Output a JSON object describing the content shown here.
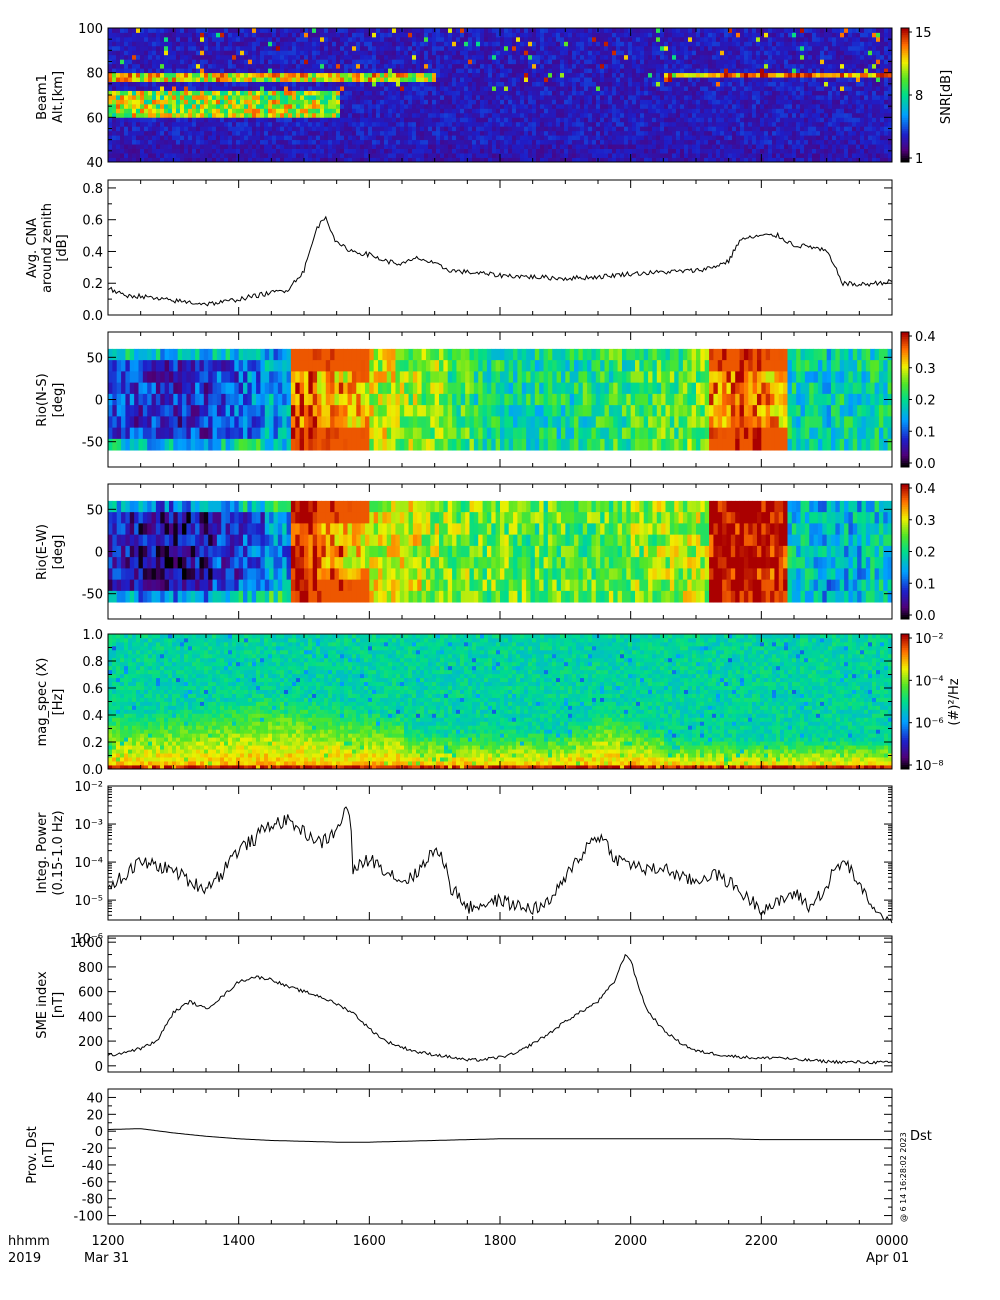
{
  "chart_data": [
    {
      "type": "heatmap",
      "ylabel": [
        "Beam1",
        "Alt.[km]"
      ],
      "ylim": [
        40,
        100
      ],
      "yticks": [
        40,
        60,
        80,
        100
      ],
      "colorbar": {
        "label": "SNR[dB]",
        "range": [
          1,
          15
        ],
        "ticks": [
          "1",
          "8",
          "15"
        ]
      },
      "features": [
        {
          "layer": "lower echo layer",
          "alt_km": [
            62,
            72
          ],
          "time_range": [
            "1200",
            "1530"
          ]
        },
        {
          "layer": "upper echo layer",
          "alt_km": [
            76,
            80
          ],
          "time_range": [
            "1200",
            "1700"
          ]
        },
        {
          "layer": "upper echo layer",
          "alt_km": [
            77,
            79
          ],
          "time_range": [
            "2030",
            "0000"
          ]
        }
      ]
    },
    {
      "type": "line",
      "ylabel": [
        "Avg. CNA",
        "around zenith",
        "[dB]"
      ],
      "ylim": [
        0.0,
        0.85
      ],
      "yticks": [
        "0.0",
        "0.2",
        "0.4",
        "0.6",
        "0.8"
      ],
      "x": [
        1200,
        1215,
        1230,
        1245,
        1300,
        1315,
        1330,
        1345,
        1400,
        1415,
        1430,
        1445,
        1500,
        1512,
        1520,
        1530,
        1545,
        1600,
        1615,
        1630,
        1645,
        1700,
        1715,
        1730,
        1745,
        1800,
        1830,
        1900,
        1930,
        2000,
        2030,
        2100,
        2115,
        2130,
        2140,
        2145,
        2200,
        2215,
        2230,
        2245,
        2300,
        2315,
        2330,
        2345,
        2400
      ],
      "values": [
        0.17,
        0.12,
        0.12,
        0.1,
        0.09,
        0.08,
        0.07,
        0.08,
        0.1,
        0.12,
        0.14,
        0.16,
        0.28,
        0.55,
        0.62,
        0.45,
        0.4,
        0.38,
        0.34,
        0.32,
        0.36,
        0.32,
        0.28,
        0.27,
        0.26,
        0.25,
        0.24,
        0.23,
        0.24,
        0.26,
        0.27,
        0.28,
        0.3,
        0.34,
        0.47,
        0.48,
        0.5,
        0.5,
        0.44,
        0.43,
        0.4,
        0.2,
        0.19,
        0.2,
        0.21
      ]
    },
    {
      "type": "heatmap",
      "ylabel": [
        "Rio(N-S)",
        "[deg]"
      ],
      "ylim": [
        -80,
        80
      ],
      "yticks": [
        "-50",
        "0",
        "50"
      ],
      "colorbar": {
        "range": [
          0.0,
          0.42
        ],
        "ticks": [
          "0.0",
          "0.1",
          "0.2",
          "0.3",
          "0.4"
        ]
      },
      "column_means": [
        0.1,
        0.09,
        0.08,
        0.09,
        0.11,
        0.13,
        0.15,
        0.38,
        0.35,
        0.33,
        0.3,
        0.28,
        0.27,
        0.24,
        0.22,
        0.21,
        0.21,
        0.21,
        0.22,
        0.23,
        0.24,
        0.25,
        0.26,
        0.36,
        0.38,
        0.35,
        0.2,
        0.19,
        0.2,
        0.21
      ]
    },
    {
      "type": "heatmap",
      "ylabel": [
        "Rio(E-W)",
        "[deg]"
      ],
      "ylim": [
        -80,
        80
      ],
      "yticks": [
        "-50",
        "0",
        "50"
      ],
      "colorbar": {
        "range": [
          0.0,
          0.42
        ],
        "ticks": [
          "0.0",
          "0.1",
          "0.2",
          "0.3",
          "0.4"
        ]
      },
      "column_means": [
        0.08,
        0.06,
        0.05,
        0.06,
        0.09,
        0.11,
        0.14,
        0.4,
        0.36,
        0.33,
        0.3,
        0.3,
        0.28,
        0.27,
        0.26,
        0.26,
        0.25,
        0.25,
        0.25,
        0.26,
        0.27,
        0.28,
        0.29,
        0.42,
        0.42,
        0.4,
        0.19,
        0.16,
        0.17,
        0.18
      ]
    },
    {
      "type": "heatmap",
      "ylabel": [
        "mag_spec (X)",
        "[Hz]"
      ],
      "ylim": [
        0.0,
        1.0
      ],
      "yticks": [
        "0.0",
        "0.2",
        "0.4",
        "0.6",
        "0.8",
        "1.0"
      ],
      "colorbar": {
        "label": "(#)²/Hz",
        "scale": "log",
        "range": [
          1e-09,
          0.1
        ],
        "ticks": [
          "10⁻⁸",
          "10⁻⁶",
          "10⁻⁴",
          "10⁻²"
        ]
      }
    },
    {
      "type": "line",
      "ylabel": [
        "Integ. Power",
        "(0.15-1.0 Hz)"
      ],
      "yscale": "log",
      "ylim": [
        3e-06,
        0.01
      ],
      "yticks": [
        "10⁻⁶",
        "10⁻⁵",
        "10⁻⁴",
        "10⁻³",
        "10⁻²"
      ],
      "x": [
        1200,
        1215,
        1230,
        1245,
        1300,
        1315,
        1330,
        1345,
        1400,
        1415,
        1430,
        1445,
        1500,
        1515,
        1530,
        1540,
        1545,
        1600,
        1615,
        1630,
        1645,
        1700,
        1715,
        1730,
        1745,
        1800,
        1815,
        1830,
        1845,
        1900,
        1915,
        1930,
        1945,
        2000,
        2015,
        2030,
        2045,
        2100,
        2115,
        2130,
        2145,
        2200,
        2215,
        2230,
        2245,
        2300,
        2315,
        2330,
        2345,
        2400
      ],
      "values": [
        2.5e-05,
        4e-05,
        0.0001,
        8e-05,
        6e-05,
        3e-05,
        2e-05,
        5e-05,
        0.0002,
        0.0004,
        0.001,
        0.0012,
        0.0006,
        0.0003,
        0.0006,
        0.0025,
        5e-05,
        0.00012,
        6e-05,
        3e-05,
        5e-05,
        0.0002,
        2e-05,
        6e-06,
        8e-06,
        1e-05,
        7e-06,
        6e-06,
        8e-06,
        3e-05,
        0.00015,
        0.0005,
        0.00012,
        9e-05,
        6e-05,
        7e-05,
        4e-05,
        3e-05,
        5e-05,
        3e-05,
        1.2e-05,
        6e-06,
        8e-06,
        1.5e-05,
        6e-06,
        2e-05,
        0.0001,
        2e-05,
        4e-06,
        2.5e-06
      ]
    },
    {
      "type": "line",
      "ylabel": [
        "SME index",
        "[nT]"
      ],
      "ylim": [
        -50,
        1050
      ],
      "yticks": [
        "0",
        "200",
        "400",
        "600",
        "800",
        "1000"
      ],
      "x": [
        1200,
        1215,
        1230,
        1245,
        1300,
        1315,
        1330,
        1345,
        1400,
        1415,
        1430,
        1445,
        1500,
        1515,
        1530,
        1545,
        1600,
        1615,
        1630,
        1645,
        1700,
        1715,
        1730,
        1745,
        1800,
        1815,
        1830,
        1845,
        1900,
        1915,
        1930,
        1945,
        1955,
        2000,
        2005,
        2015,
        2030,
        2045,
        2100,
        2115,
        2130,
        2145,
        2200,
        2215,
        2230,
        2245,
        2300,
        2315,
        2330,
        2345,
        2400
      ],
      "values": [
        80,
        110,
        140,
        200,
        430,
        520,
        460,
        560,
        680,
        720,
        700,
        640,
        600,
        560,
        500,
        430,
        300,
        200,
        150,
        110,
        90,
        70,
        45,
        50,
        70,
        100,
        180,
        260,
        360,
        440,
        520,
        680,
        900,
        860,
        700,
        450,
        290,
        190,
        120,
        100,
        80,
        70,
        60,
        70,
        50,
        45,
        35,
        30,
        30,
        28,
        25
      ]
    },
    {
      "type": "line",
      "ylabel": [
        "Prov. Dst",
        "[nT]"
      ],
      "ylim": [
        -110,
        50
      ],
      "yticks": [
        "-100",
        "-80",
        "-60",
        "-40",
        "-20",
        "0",
        "20",
        "40"
      ],
      "series": [
        {
          "name": "Dst",
          "x": [
            1200,
            1230,
            1300,
            1330,
            1400,
            1430,
            1500,
            1530,
            1600,
            1630,
            1700,
            1730,
            1800,
            1830,
            1900,
            1930,
            2000,
            2030,
            2100,
            2130,
            2200,
            2230,
            2300,
            2330,
            2400
          ],
          "values": [
            2,
            3,
            -2,
            -6,
            -9,
            -11,
            -12,
            -13,
            -13,
            -12,
            -11,
            -10,
            -9,
            -9,
            -9,
            -9,
            -9,
            -9,
            -9,
            -9,
            -10,
            -10,
            -10,
            -10,
            -10
          ]
        }
      ]
    }
  ],
  "time_axis": {
    "xlim": [
      1200,
      2400
    ],
    "ticks": [
      "1200",
      "1400",
      "1600",
      "1800",
      "2000",
      "2200",
      "0000"
    ],
    "left_label": [
      "hhmm",
      "2019"
    ],
    "start_date": "Mar 31",
    "end_date": "Apr 01"
  },
  "footnote": "@ 6 14 16:28:02 2023"
}
